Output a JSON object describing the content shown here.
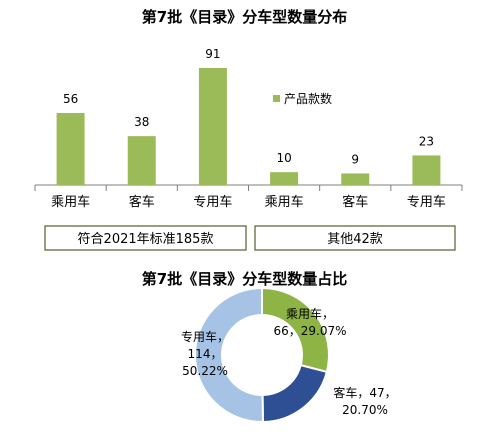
{
  "bar_title": "第7批《目录》分车型数量分布",
  "pie_title": "第7批《目录》分车型数量占比",
  "legend_label": "产品款数",
  "group_labels": [
    "符合2021年标准185款",
    "其他42款"
  ],
  "colors": {
    "bar": "#9bbb59",
    "pie": [
      "#8db444",
      "#2e4f94",
      "#a6c3e6"
    ],
    "group_border": "#4f6228"
  },
  "chart_data": [
    {
      "type": "bar",
      "title": "第7批《目录》分车型数量分布",
      "categories": [
        "乘用车",
        "客车",
        "专用车",
        "乘用车",
        "客车",
        "专用车"
      ],
      "series": [
        {
          "name": "产品款数",
          "values": [
            56,
            38,
            91,
            10,
            9,
            23
          ]
        }
      ],
      "groups": [
        {
          "label": "符合2021年标准185款",
          "categories": [
            "乘用车",
            "客车",
            "专用车"
          ]
        },
        {
          "label": "其他42款",
          "categories": [
            "乘用车",
            "客车",
            "专用车"
          ]
        }
      ],
      "legend": "top-right",
      "grid": false
    },
    {
      "type": "pie",
      "title": "第7批《目录》分车型数量占比",
      "labels": [
        "乘用车",
        "客车",
        "专用车"
      ],
      "values": [
        66,
        47,
        114
      ],
      "percents": [
        "29.07%",
        "20.70%",
        "50.22%"
      ]
    }
  ]
}
